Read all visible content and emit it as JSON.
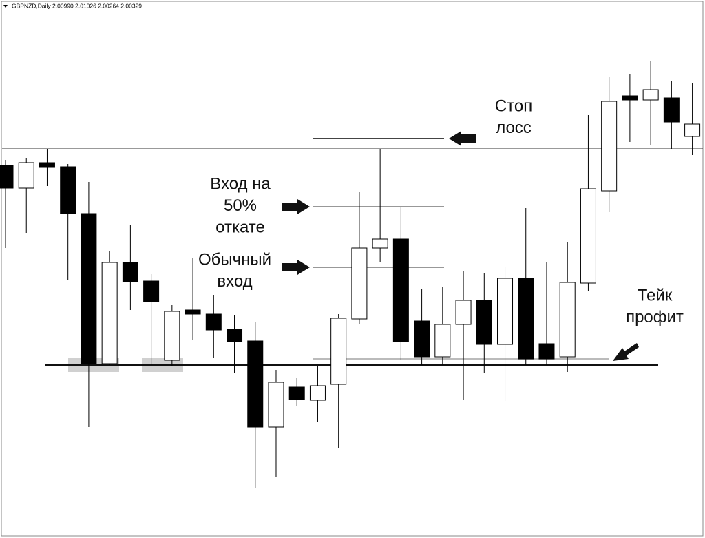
{
  "chart_data": {
    "type": "candlestick",
    "title": "GBPNZD,Daily 2.00990 2.01026 2.00264 2.00329",
    "up_color": "#ffffff",
    "down_color": "#000000",
    "ylim": [
      1.9752,
      2.0528
    ],
    "open": [
      2.029,
      2.0257,
      2.0294,
      2.0288,
      2.022,
      2.0002,
      2.0149,
      2.0122,
      2.0007,
      2.008,
      2.0074,
      2.0052,
      2.0035,
      1.991,
      1.9968,
      1.9949,
      1.9972,
      2.0067,
      2.017,
      2.0183,
      2.0064,
      2.0012,
      2.0059,
      2.0094,
      2.003,
      2.0126,
      2.0031,
      2.0012,
      2.0119,
      2.0253,
      2.0391,
      2.0385,
      2.0388,
      2.0332
    ],
    "high": [
      2.0298,
      2.03,
      2.0314,
      2.0292,
      2.0266,
      2.0165,
      2.0204,
      2.0132,
      2.0087,
      2.0156,
      2.0102,
      2.0072,
      2.0062,
      1.9993,
      1.9981,
      1.9998,
      2.0074,
      2.0251,
      2.0314,
      2.0229,
      2.0111,
      2.0113,
      2.0137,
      2.0134,
      2.0143,
      2.0228,
      2.0149,
      2.0179,
      2.0363,
      2.0418,
      2.0422,
      2.0442,
      2.0412,
      2.041
    ],
    "low": [
      2.017,
      2.0192,
      2.026,
      2.0124,
      1.991,
      2.0,
      2.008,
      2.0,
      1.9999,
      2.0036,
      2.001,
      1.9989,
      1.9822,
      1.9838,
      1.994,
      1.9918,
      1.988,
      2.006,
      2.0149,
      2.0008,
      2.0,
      2.0,
      1.995,
      1.9988,
      1.9948,
      2.0,
      2.0,
      1.999,
      2.0107,
      2.0222,
      2.0324,
      2.032,
      2.0313,
      2.0305
    ],
    "close": [
      2.0257,
      2.0294,
      2.0287,
      2.022,
      2.0002,
      2.0149,
      2.0121,
      2.0092,
      2.0078,
      2.0074,
      2.0051,
      2.0034,
      1.991,
      1.9975,
      1.995,
      1.997,
      2.0068,
      2.017,
      2.0183,
      2.0034,
      2.0012,
      2.0059,
      2.0094,
      2.003,
      2.0126,
      2.0009,
      2.0009,
      2.012,
      2.0256,
      2.0383,
      2.0385,
      2.04,
      2.0353,
      2.035
    ],
    "levels": [
      {
        "value": 2.0314,
        "color": "#333333"
      },
      {
        "value": 2.0,
        "color": "#111111"
      },
      {
        "value": 2.0329,
        "color": "#444444"
      },
      {
        "value": 2.023,
        "color": "#777777"
      },
      {
        "value": 2.0142,
        "color": "#777777"
      },
      {
        "value": 2.0009,
        "color": "#bbbbbb"
      }
    ],
    "annotations": [
      {
        "lines": [
          "Стоп",
          "лосс"
        ]
      },
      {
        "lines": [
          "Вход на",
          "50%",
          "откате"
        ]
      },
      {
        "lines": [
          "Обычный",
          "вход"
        ]
      },
      {
        "lines": [
          "Тейк",
          "профит"
        ]
      }
    ]
  }
}
